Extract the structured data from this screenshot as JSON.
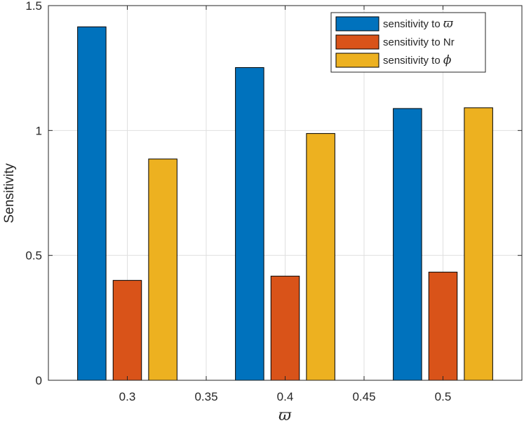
{
  "chart_data": {
    "type": "bar",
    "title": "",
    "xlabel": "ϖ",
    "ylabel": "Sensitivity",
    "categories": [
      0.3,
      0.4,
      0.5
    ],
    "series": [
      {
        "name": "sensitivity to ϖ",
        "legend_prefix": "sensitivity to ",
        "legend_symbol": "ϖ",
        "color": "#0072BD",
        "values": [
          1.415,
          1.252,
          1.088
        ]
      },
      {
        "name": "sensitivity to Nr",
        "legend_prefix": "sensitivity to Nr",
        "legend_symbol": "",
        "color": "#D95319",
        "values": [
          0.4,
          0.417,
          0.433
        ]
      },
      {
        "name": "sensitivity to ϕ",
        "legend_prefix": "sensitivity to ",
        "legend_symbol": "ϕ",
        "color": "#EDB120",
        "values": [
          0.886,
          0.988,
          1.091
        ]
      }
    ],
    "xlim": [
      0.25,
      0.55
    ],
    "ylim": [
      0,
      1.5
    ],
    "xticks": [
      0.3,
      0.35,
      0.4,
      0.45,
      0.5
    ],
    "xtick_labels": [
      "0.3",
      "0.35",
      "0.4",
      "0.45",
      "0.5"
    ],
    "yticks": [
      0,
      0.5,
      1,
      1.5
    ],
    "ytick_labels": [
      "0",
      "0.5",
      "1",
      "1.5"
    ],
    "grid": true,
    "legend_position": "top-right"
  }
}
